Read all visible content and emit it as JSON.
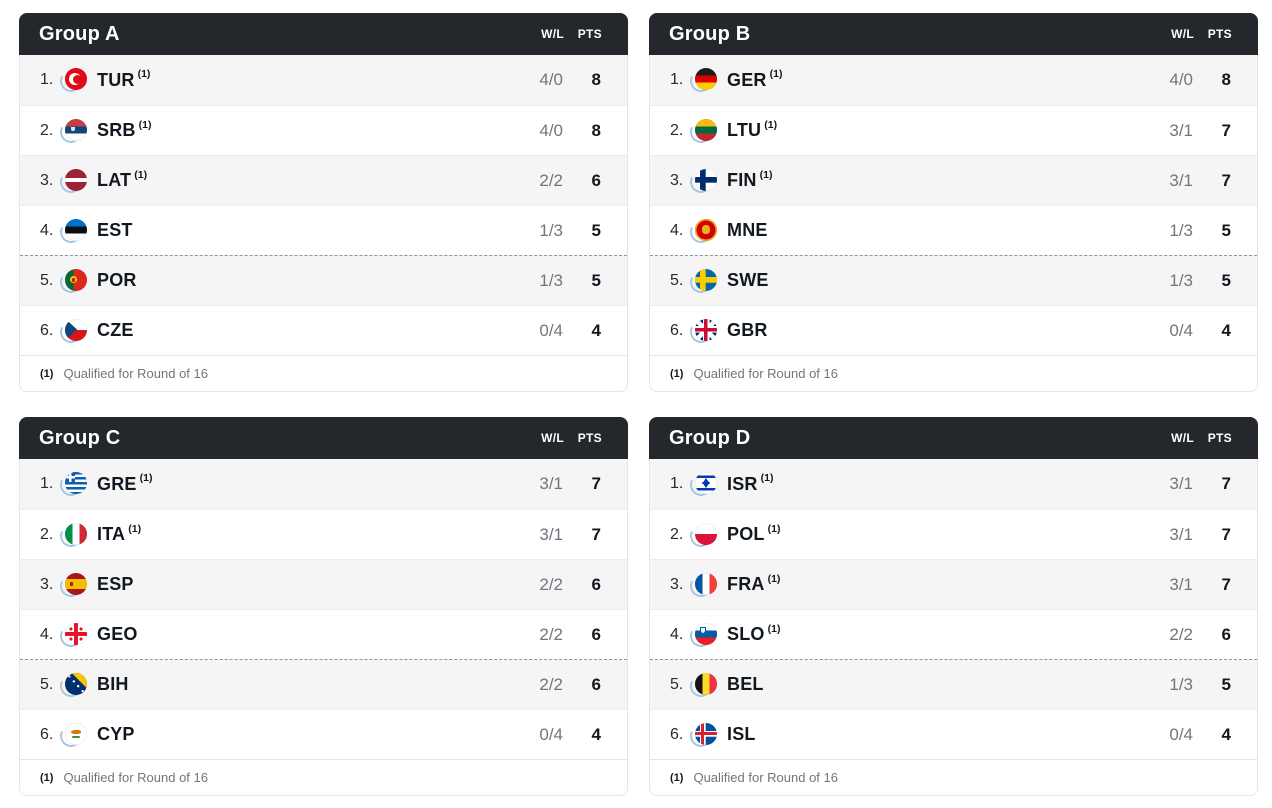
{
  "columns": {
    "wl": "W/L",
    "pts": "PTS"
  },
  "footnote": {
    "marker": "(1)",
    "text": "Qualified for Round of 16"
  },
  "cutoff_after_row": 4,
  "colors": {
    "header_bg": "#24282c",
    "row_alt_bg": "#f5f5f6",
    "text_dark": "#121820",
    "text_gray": "#70767d",
    "border": "#e4e5e7",
    "cutoff_dashed": "#8f969d",
    "flag_swoosh": "#a7c6e2"
  },
  "groups": [
    {
      "title": "Group A",
      "teams": [
        {
          "rank": "1.",
          "code": "TUR",
          "flag": "tur",
          "note": "(1)",
          "wl": "4/0",
          "pts": "8"
        },
        {
          "rank": "2.",
          "code": "SRB",
          "flag": "srb",
          "note": "(1)",
          "wl": "4/0",
          "pts": "8"
        },
        {
          "rank": "3.",
          "code": "LAT",
          "flag": "lat",
          "note": "(1)",
          "wl": "2/2",
          "pts": "6"
        },
        {
          "rank": "4.",
          "code": "EST",
          "flag": "est",
          "note": "",
          "wl": "1/3",
          "pts": "5"
        },
        {
          "rank": "5.",
          "code": "POR",
          "flag": "por",
          "note": "",
          "wl": "1/3",
          "pts": "5"
        },
        {
          "rank": "6.",
          "code": "CZE",
          "flag": "cze",
          "note": "",
          "wl": "0/4",
          "pts": "4"
        }
      ]
    },
    {
      "title": "Group B",
      "teams": [
        {
          "rank": "1.",
          "code": "GER",
          "flag": "ger",
          "note": "(1)",
          "wl": "4/0",
          "pts": "8"
        },
        {
          "rank": "2.",
          "code": "LTU",
          "flag": "ltu",
          "note": "(1)",
          "wl": "3/1",
          "pts": "7"
        },
        {
          "rank": "3.",
          "code": "FIN",
          "flag": "fin",
          "note": "(1)",
          "wl": "3/1",
          "pts": "7"
        },
        {
          "rank": "4.",
          "code": "MNE",
          "flag": "mne",
          "note": "",
          "wl": "1/3",
          "pts": "5"
        },
        {
          "rank": "5.",
          "code": "SWE",
          "flag": "swe",
          "note": "",
          "wl": "1/3",
          "pts": "5"
        },
        {
          "rank": "6.",
          "code": "GBR",
          "flag": "gbr",
          "note": "",
          "wl": "0/4",
          "pts": "4"
        }
      ]
    },
    {
      "title": "Group C",
      "teams": [
        {
          "rank": "1.",
          "code": "GRE",
          "flag": "gre",
          "note": "(1)",
          "wl": "3/1",
          "pts": "7"
        },
        {
          "rank": "2.",
          "code": "ITA",
          "flag": "ita",
          "note": "(1)",
          "wl": "3/1",
          "pts": "7"
        },
        {
          "rank": "3.",
          "code": "ESP",
          "flag": "esp",
          "note": "",
          "wl": "2/2",
          "pts": "6"
        },
        {
          "rank": "4.",
          "code": "GEO",
          "flag": "geo",
          "note": "",
          "wl": "2/2",
          "pts": "6"
        },
        {
          "rank": "5.",
          "code": "BIH",
          "flag": "bih",
          "note": "",
          "wl": "2/2",
          "pts": "6"
        },
        {
          "rank": "6.",
          "code": "CYP",
          "flag": "cyp",
          "note": "",
          "wl": "0/4",
          "pts": "4"
        }
      ]
    },
    {
      "title": "Group D",
      "teams": [
        {
          "rank": "1.",
          "code": "ISR",
          "flag": "isr",
          "note": "(1)",
          "wl": "3/1",
          "pts": "7"
        },
        {
          "rank": "2.",
          "code": "POL",
          "flag": "pol",
          "note": "(1)",
          "wl": "3/1",
          "pts": "7"
        },
        {
          "rank": "3.",
          "code": "FRA",
          "flag": "fra",
          "note": "(1)",
          "wl": "3/1",
          "pts": "7"
        },
        {
          "rank": "4.",
          "code": "SLO",
          "flag": "slo",
          "note": "(1)",
          "wl": "2/2",
          "pts": "6"
        },
        {
          "rank": "5.",
          "code": "BEL",
          "flag": "bel",
          "note": "",
          "wl": "1/3",
          "pts": "5"
        },
        {
          "rank": "6.",
          "code": "ISL",
          "flag": "isl",
          "note": "",
          "wl": "0/4",
          "pts": "4"
        }
      ]
    }
  ]
}
